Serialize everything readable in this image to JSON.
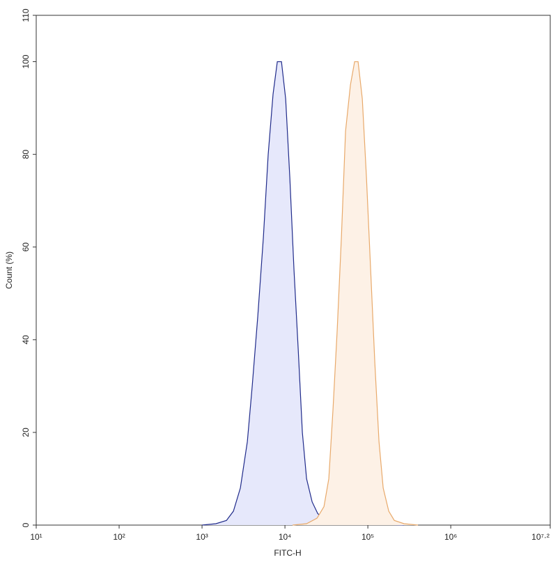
{
  "chart_data": {
    "type": "histogram-overlay",
    "xlabel": "FITC-H",
    "ylabel": "Count (%)",
    "xscale": "log",
    "xlim": [
      10,
      15848932
    ],
    "xticks": [
      {
        "value": 10,
        "label": "10¹"
      },
      {
        "value": 100,
        "label": "10²"
      },
      {
        "value": 1000,
        "label": "10³"
      },
      {
        "value": 10000,
        "label": "10⁴"
      },
      {
        "value": 100000,
        "label": "10⁵"
      },
      {
        "value": 1000000,
        "label": "10⁶"
      },
      {
        "value": 15848932,
        "label": "10⁷·²"
      }
    ],
    "ylim": [
      0,
      110
    ],
    "yticks": [
      0,
      20,
      40,
      60,
      80,
      100,
      110
    ],
    "series": [
      {
        "color": "#1f2a8a",
        "fill": "#e6e8fb",
        "x": [
          1000,
          1470,
          1970,
          2390,
          2900,
          3520,
          4030,
          4700,
          5490,
          6280,
          7190,
          8090,
          9080,
          10200,
          11450,
          12860,
          14450,
          16220,
          18230,
          21290,
          24850,
          29570,
          39530,
          58210,
          85690,
          126100,
          185600,
          273300
        ],
        "values": [
          0,
          0.3,
          1,
          3,
          8,
          18,
          30,
          45,
          62,
          80,
          93,
          100,
          100,
          92,
          75,
          55,
          38,
          20,
          10,
          5,
          2.5,
          1.2,
          0.6,
          0.5,
          0.3,
          0.2,
          0.1,
          0
        ]
      },
      {
        "color": "#e8a96a",
        "fill": "#fdf1e6",
        "x": [
          12360,
          18230,
          24380,
          29570,
          33810,
          38000,
          42660,
          47940,
          53830,
          61660,
          69200,
          76220,
          85690,
          96200,
          108100,
          121400,
          136300,
          153100,
          178700,
          208600,
          273300,
          402700
        ],
        "values": [
          0,
          0.3,
          1.5,
          4,
          10,
          25,
          42,
          62,
          85,
          95,
          100,
          100,
          92,
          75,
          55,
          35,
          18,
          8,
          3,
          1,
          0.3,
          0
        ]
      }
    ]
  }
}
